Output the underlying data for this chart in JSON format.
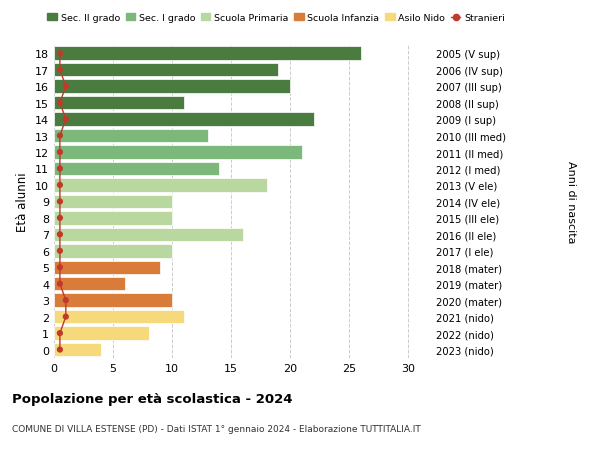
{
  "ages": [
    18,
    17,
    16,
    15,
    14,
    13,
    12,
    11,
    10,
    9,
    8,
    7,
    6,
    5,
    4,
    3,
    2,
    1,
    0
  ],
  "right_labels": [
    "2005 (V sup)",
    "2006 (IV sup)",
    "2007 (III sup)",
    "2008 (II sup)",
    "2009 (I sup)",
    "2010 (III med)",
    "2011 (II med)",
    "2012 (I med)",
    "2013 (V ele)",
    "2014 (IV ele)",
    "2015 (III ele)",
    "2016 (II ele)",
    "2017 (I ele)",
    "2018 (mater)",
    "2019 (mater)",
    "2020 (mater)",
    "2021 (nido)",
    "2022 (nido)",
    "2023 (nido)"
  ],
  "bar_values": [
    26,
    19,
    20,
    11,
    22,
    13,
    21,
    14,
    18,
    10,
    10,
    16,
    10,
    9,
    6,
    10,
    11,
    8,
    4
  ],
  "stranieri_values": [
    0.5,
    0.5,
    1.0,
    0.5,
    1.0,
    0.5,
    0.5,
    0.5,
    0.5,
    0.5,
    0.5,
    0.5,
    0.5,
    0.5,
    0.5,
    1.0,
    1.0,
    0.5,
    0.5
  ],
  "bar_colors": [
    "#4a7c40",
    "#4a7c40",
    "#4a7c40",
    "#4a7c40",
    "#4a7c40",
    "#7cb87a",
    "#7cb87a",
    "#7cb87a",
    "#b8d8a0",
    "#b8d8a0",
    "#b8d8a0",
    "#b8d8a0",
    "#b8d8a0",
    "#d97c3a",
    "#d97c3a",
    "#d97c3a",
    "#f5d97a",
    "#f5d97a",
    "#f5d97a"
  ],
  "legend_labels": [
    "Sec. II grado",
    "Sec. I grado",
    "Scuola Primaria",
    "Scuola Infanzia",
    "Asilo Nido",
    "Stranieri"
  ],
  "legend_colors": [
    "#4a7c40",
    "#7cb87a",
    "#b8d8a0",
    "#d97c3a",
    "#f5d97a",
    "#c0392b"
  ],
  "stranieri_color": "#c0392b",
  "ylabel": "Età alunni",
  "right_ylabel": "Anni di nascita",
  "title": "Popolazione per età scolastica - 2024",
  "subtitle": "COMUNE DI VILLA ESTENSE (PD) - Dati ISTAT 1° gennaio 2024 - Elaborazione TUTTITALIA.IT",
  "xlim": [
    0,
    32
  ],
  "xticks": [
    0,
    5,
    10,
    15,
    20,
    25,
    30
  ],
  "background_color": "#ffffff",
  "grid_color": "#cccccc"
}
